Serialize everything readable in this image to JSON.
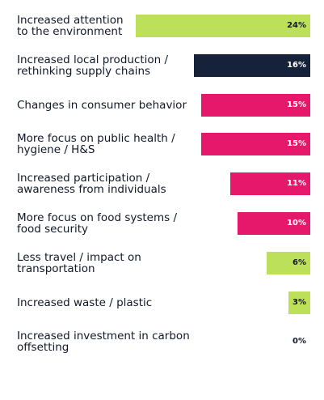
{
  "colors": {
    "green": "#bde05a",
    "navy": "#16213a",
    "pink": "#e5186c"
  },
  "chart_data": {
    "type": "bar",
    "orientation": "horizontal",
    "xlim": [
      0,
      24
    ],
    "categories": [
      "Increased attention to the environment",
      "Increased local production / rethinking supply chains",
      "Changes in consumer behavior",
      "More focus on public health / hygiene / H&S",
      "Increased participation / awareness from individuals",
      "More focus on food systems / food security",
      "Less travel / impact on transportation",
      "Increased waste / plastic",
      "Increased investment in carbon offsetting"
    ],
    "label_lines": [
      [
        "Increased attention",
        "to the environment"
      ],
      [
        "Increased local production /",
        "rethinking supply chains"
      ],
      [
        "Changes in consumer behavior"
      ],
      [
        "More focus on public health /",
        "hygiene / H&S"
      ],
      [
        "Increased participation /",
        "awareness from individuals"
      ],
      [
        "More focus on food systems /",
        "food security"
      ],
      [
        "Less travel / impact on",
        "transportation"
      ],
      [
        "Increased waste / plastic"
      ],
      [
        "Increased investment in carbon",
        "offsetting"
      ]
    ],
    "values": [
      24,
      16,
      15,
      15,
      11,
      10,
      6,
      3,
      0
    ],
    "value_labels": [
      "24%",
      "16%",
      "15%",
      "15%",
      "11%",
      "10%",
      "6%",
      "3%",
      "0%"
    ],
    "bar_colors": [
      "green",
      "navy",
      "pink",
      "pink",
      "pink",
      "pink",
      "green",
      "green",
      "green"
    ]
  }
}
